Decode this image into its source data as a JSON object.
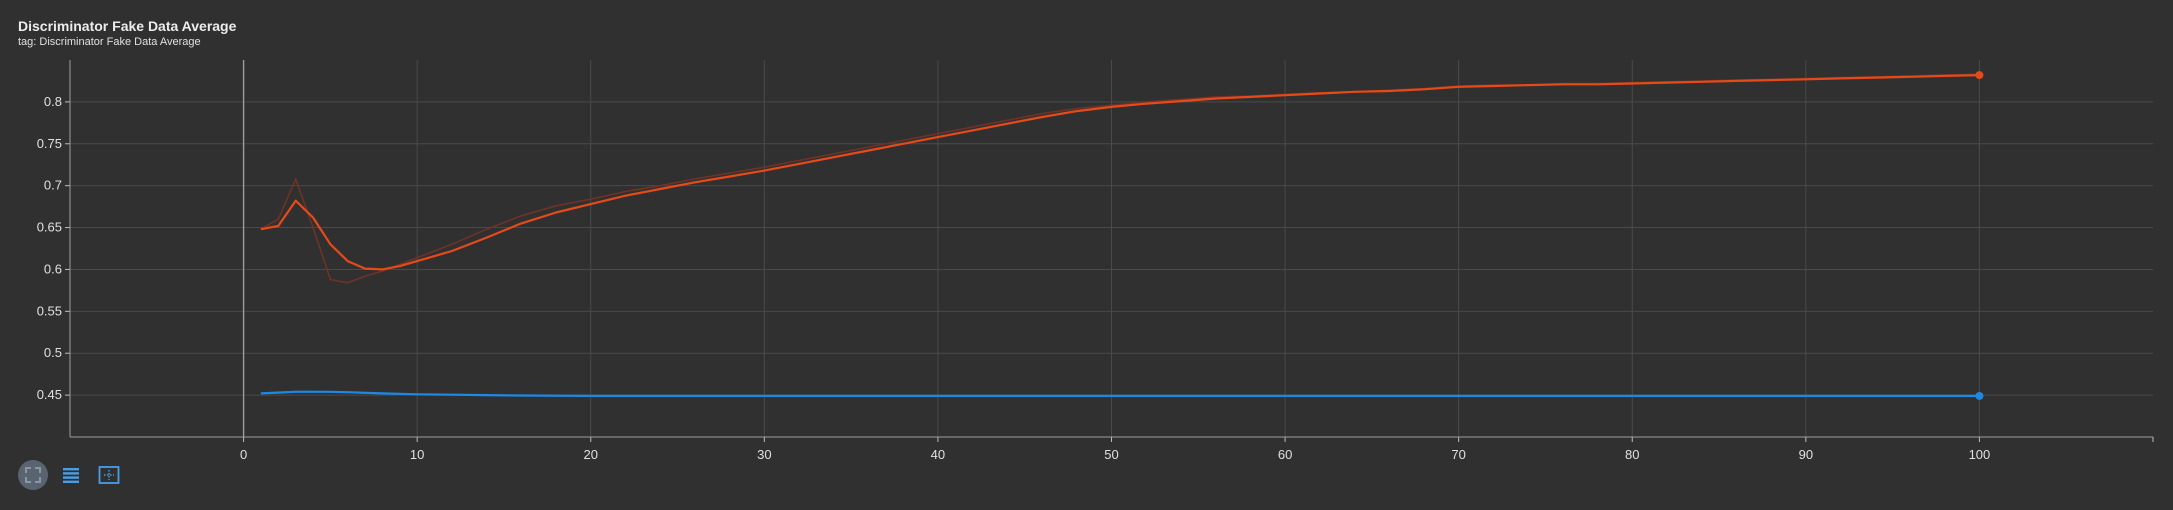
{
  "header": {
    "title": "Discriminator Fake Data Average",
    "subtitle": "tag: Discriminator Fake Data Average"
  },
  "toolbar": {
    "buttons": [
      {
        "icon": "fit-domain-icon",
        "active": true
      },
      {
        "icon": "data-table-icon",
        "active": false
      },
      {
        "icon": "expand-icon",
        "active": false
      }
    ]
  },
  "chart_data": {
    "type": "line",
    "title": "Discriminator Fake Data Average",
    "xlim": [
      -10,
      110
    ],
    "ylim": [
      0.4,
      0.85
    ],
    "xticks": [
      0,
      10,
      20,
      30,
      40,
      50,
      60,
      70,
      80,
      90,
      100
    ],
    "yticks": [
      0.45,
      0.5,
      0.55,
      0.6,
      0.65,
      0.7,
      0.75,
      0.8
    ],
    "ytick_labels": [
      "0.45",
      "0.5",
      "0.55",
      "0.6",
      "0.65",
      "0.7",
      "0.75",
      "0.8"
    ],
    "grid": true,
    "series": [
      {
        "color": "#e64a19",
        "raw_color": "#6e3326",
        "smoothed": true,
        "x": [
          1,
          2,
          3,
          4,
          5,
          6,
          7,
          8,
          9,
          10,
          12,
          14,
          16,
          18,
          20,
          22,
          24,
          26,
          28,
          30,
          32,
          34,
          36,
          38,
          40,
          42,
          44,
          46,
          48,
          50,
          52,
          54,
          56,
          58,
          60,
          62,
          64,
          66,
          68,
          70,
          72,
          74,
          76,
          78,
          80,
          82,
          84,
          86,
          88,
          90,
          92,
          94,
          96,
          98,
          100
        ],
        "y": [
          0.648,
          0.652,
          0.682,
          0.662,
          0.63,
          0.61,
          0.601,
          0.6,
          0.604,
          0.61,
          0.622,
          0.638,
          0.655,
          0.668,
          0.678,
          0.688,
          0.696,
          0.704,
          0.711,
          0.718,
          0.726,
          0.734,
          0.742,
          0.75,
          0.758,
          0.766,
          0.774,
          0.782,
          0.789,
          0.794,
          0.798,
          0.801,
          0.804,
          0.806,
          0.808,
          0.81,
          0.812,
          0.813,
          0.815,
          0.818,
          0.819,
          0.82,
          0.821,
          0.821,
          0.822,
          0.823,
          0.824,
          0.825,
          0.826,
          0.827,
          0.828,
          0.829,
          0.83,
          0.831,
          0.832
        ],
        "raw_y": [
          0.648,
          0.66,
          0.708,
          0.65,
          0.588,
          0.584,
          0.592,
          0.598,
          0.606,
          0.614,
          0.63,
          0.648,
          0.664,
          0.676,
          0.684,
          0.693,
          0.7,
          0.708,
          0.715,
          0.722,
          0.73,
          0.738,
          0.746,
          0.754,
          0.762,
          0.77,
          0.778,
          0.786,
          0.792,
          0.796,
          0.8,
          0.803,
          0.806,
          0.807,
          0.809,
          0.811,
          0.812,
          0.814,
          0.816,
          0.819,
          0.82,
          0.82,
          0.822,
          0.822,
          0.823,
          0.824,
          0.825,
          0.826,
          0.827,
          0.828,
          0.829,
          0.83,
          0.831,
          0.832,
          0.833
        ]
      },
      {
        "color": "#1e88e5",
        "raw_color": "#24486b",
        "smoothed": true,
        "x": [
          1,
          2,
          3,
          4,
          5,
          6,
          8,
          10,
          12,
          14,
          16,
          20,
          30,
          40,
          50,
          60,
          70,
          80,
          90,
          100
        ],
        "y": [
          0.452,
          0.453,
          0.454,
          0.454,
          0.454,
          0.4535,
          0.452,
          0.451,
          0.4505,
          0.45,
          0.4495,
          0.449,
          0.449,
          0.449,
          0.449,
          0.449,
          0.449,
          0.449,
          0.449,
          0.449
        ],
        "raw_y": [
          0.452,
          0.4535,
          0.4545,
          0.4545,
          0.454,
          0.453,
          0.4515,
          0.4505,
          0.45,
          0.4495,
          0.449,
          0.449,
          0.449,
          0.449,
          0.449,
          0.449,
          0.449,
          0.449,
          0.449,
          0.449
        ]
      }
    ]
  }
}
